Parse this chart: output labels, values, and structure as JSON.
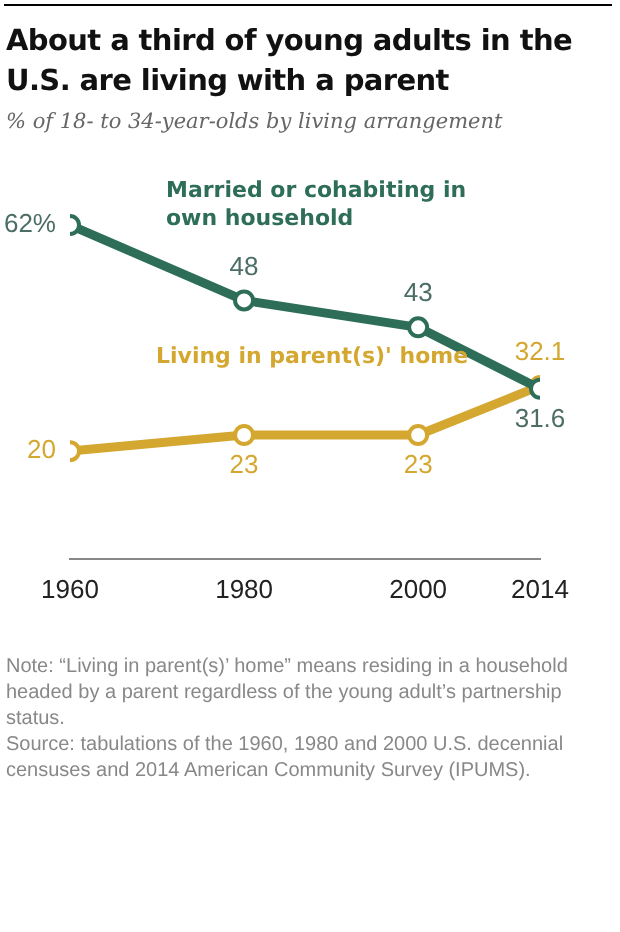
{
  "chart_data": {
    "type": "line",
    "title": "About a third of young adults in the U.S. are living with a parent",
    "subtitle": "% of 18- to 34-year-olds by living arrangement",
    "x": [
      1960,
      1980,
      2000,
      2014
    ],
    "xlim": [
      1960,
      2014
    ],
    "xticks": [
      1960,
      1980,
      2000,
      2014
    ],
    "tick_labels": "x",
    "grid": false,
    "legend": false,
    "marker": "circle",
    "line_style": "solid",
    "series": [
      {
        "name": "Married or cohabiting in own household",
        "color": "#2e6e58",
        "values": [
          62,
          48,
          43,
          31.6
        ],
        "value_labels": [
          "62%",
          "48",
          "43",
          "31.6"
        ]
      },
      {
        "name": "Living in parent(s)' home",
        "color": "#d4a830",
        "values": [
          20,
          23,
          23,
          32.1
        ],
        "value_labels": [
          "20",
          "23",
          "23",
          "32.1"
        ]
      }
    ],
    "annotations": [
      "Note: “Living in parent(s)’ home” means residing in a household headed by a parent regardless of the young adult’s partnership status.",
      "Source: tabulations of the 1960, 1980 and 2000 U.S. decennial censuses and 2014 American Community Survey (IPUMS)."
    ]
  }
}
